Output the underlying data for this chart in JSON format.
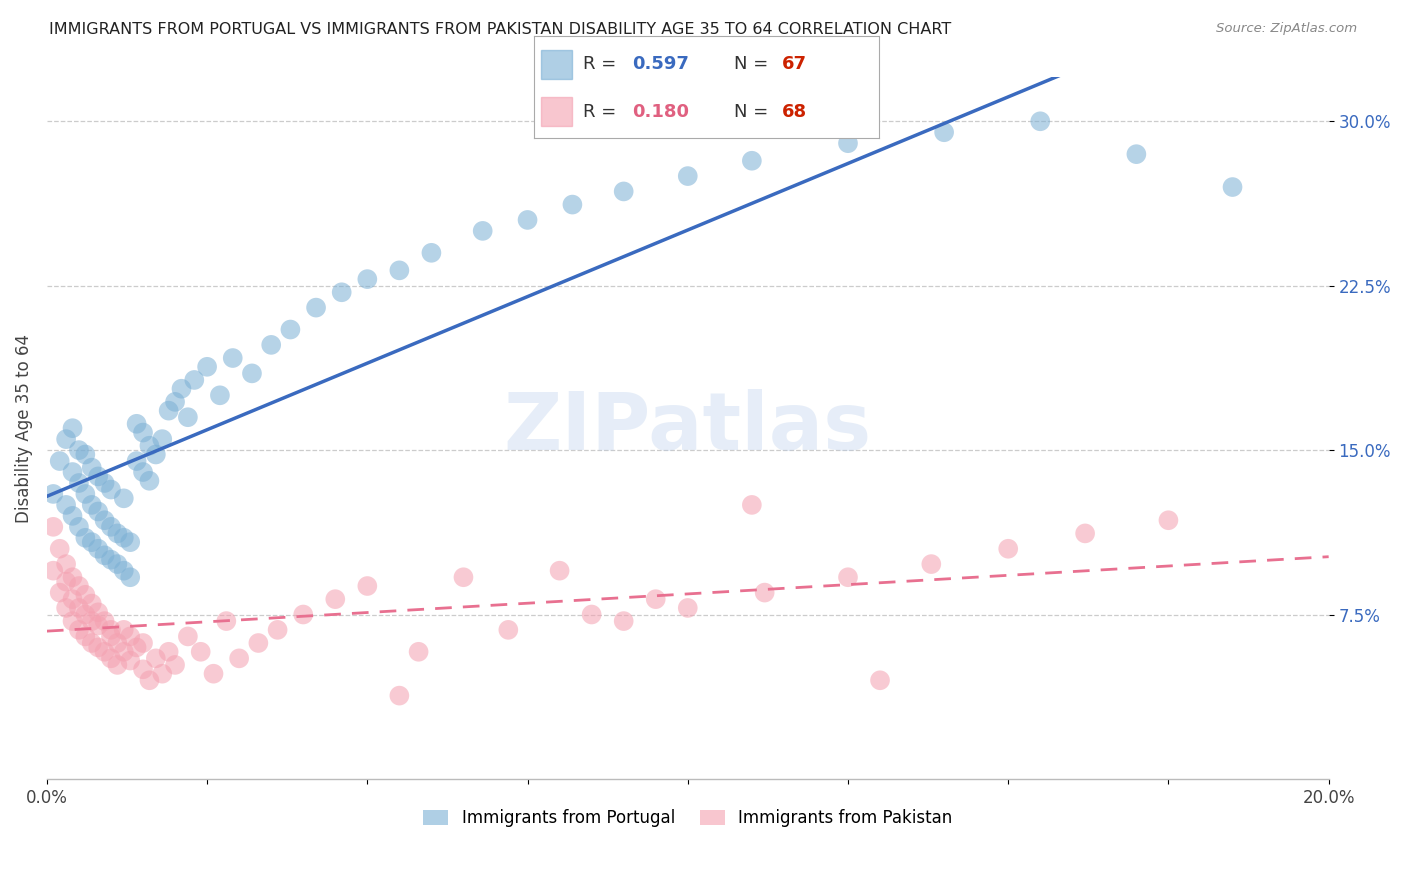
{
  "title": "IMMIGRANTS FROM PORTUGAL VS IMMIGRANTS FROM PAKISTAN DISABILITY AGE 35 TO 64 CORRELATION CHART",
  "source": "Source: ZipAtlas.com",
  "ylabel": "Disability Age 35 to 64",
  "xlim": [
    0.0,
    0.2
  ],
  "ylim": [
    0.0,
    0.32
  ],
  "xtick_positions": [
    0.0,
    0.025,
    0.05,
    0.075,
    0.1,
    0.125,
    0.15,
    0.175,
    0.2
  ],
  "xticklabels": [
    "0.0%",
    "",
    "",
    "",
    "",
    "",
    "",
    "",
    "20.0%"
  ],
  "ytick_positions": [
    0.075,
    0.15,
    0.225,
    0.3
  ],
  "ytick_labels": [
    "7.5%",
    "15.0%",
    "22.5%",
    "30.0%"
  ],
  "grid_color": "#cccccc",
  "background_color": "#ffffff",
  "portugal_color": "#7bafd4",
  "pakistan_color": "#f4a0b0",
  "portugal_line_color": "#3a6abf",
  "pakistan_line_color": "#e87090",
  "legend_R1_color": "#3a6abf",
  "legend_N1_color": "#cc2200",
  "legend_R2_color": "#e06080",
  "legend_N2_color": "#cc2200",
  "watermark": "ZIPatlas",
  "portugal_scatter_x": [
    0.001,
    0.002,
    0.003,
    0.003,
    0.004,
    0.004,
    0.004,
    0.005,
    0.005,
    0.005,
    0.006,
    0.006,
    0.006,
    0.007,
    0.007,
    0.007,
    0.008,
    0.008,
    0.008,
    0.009,
    0.009,
    0.009,
    0.01,
    0.01,
    0.01,
    0.011,
    0.011,
    0.012,
    0.012,
    0.012,
    0.013,
    0.013,
    0.014,
    0.014,
    0.015,
    0.015,
    0.016,
    0.016,
    0.017,
    0.018,
    0.019,
    0.02,
    0.021,
    0.022,
    0.023,
    0.025,
    0.027,
    0.029,
    0.032,
    0.035,
    0.038,
    0.042,
    0.046,
    0.05,
    0.055,
    0.06,
    0.068,
    0.075,
    0.082,
    0.09,
    0.1,
    0.11,
    0.125,
    0.14,
    0.155,
    0.17,
    0.185
  ],
  "portugal_scatter_y": [
    0.13,
    0.145,
    0.125,
    0.155,
    0.12,
    0.14,
    0.16,
    0.115,
    0.135,
    0.15,
    0.11,
    0.13,
    0.148,
    0.108,
    0.125,
    0.142,
    0.105,
    0.122,
    0.138,
    0.102,
    0.118,
    0.135,
    0.1,
    0.115,
    0.132,
    0.098,
    0.112,
    0.095,
    0.11,
    0.128,
    0.092,
    0.108,
    0.145,
    0.162,
    0.14,
    0.158,
    0.136,
    0.152,
    0.148,
    0.155,
    0.168,
    0.172,
    0.178,
    0.165,
    0.182,
    0.188,
    0.175,
    0.192,
    0.185,
    0.198,
    0.205,
    0.215,
    0.222,
    0.228,
    0.232,
    0.24,
    0.25,
    0.255,
    0.262,
    0.268,
    0.275,
    0.282,
    0.29,
    0.295,
    0.3,
    0.285,
    0.27
  ],
  "pakistan_scatter_x": [
    0.001,
    0.001,
    0.002,
    0.002,
    0.003,
    0.003,
    0.003,
    0.004,
    0.004,
    0.004,
    0.005,
    0.005,
    0.005,
    0.006,
    0.006,
    0.006,
    0.007,
    0.007,
    0.007,
    0.008,
    0.008,
    0.008,
    0.009,
    0.009,
    0.01,
    0.01,
    0.01,
    0.011,
    0.011,
    0.012,
    0.012,
    0.013,
    0.013,
    0.014,
    0.015,
    0.015,
    0.016,
    0.017,
    0.018,
    0.019,
    0.02,
    0.022,
    0.024,
    0.026,
    0.028,
    0.03,
    0.033,
    0.036,
    0.04,
    0.045,
    0.05,
    0.058,
    0.065,
    0.072,
    0.08,
    0.09,
    0.1,
    0.112,
    0.125,
    0.138,
    0.15,
    0.162,
    0.175,
    0.055,
    0.085,
    0.095,
    0.11,
    0.13
  ],
  "pakistan_scatter_y": [
    0.115,
    0.095,
    0.105,
    0.085,
    0.098,
    0.078,
    0.09,
    0.092,
    0.072,
    0.082,
    0.088,
    0.068,
    0.078,
    0.084,
    0.065,
    0.075,
    0.08,
    0.062,
    0.072,
    0.076,
    0.06,
    0.07,
    0.072,
    0.058,
    0.068,
    0.055,
    0.065,
    0.052,
    0.062,
    0.058,
    0.068,
    0.054,
    0.065,
    0.06,
    0.05,
    0.062,
    0.045,
    0.055,
    0.048,
    0.058,
    0.052,
    0.065,
    0.058,
    0.048,
    0.072,
    0.055,
    0.062,
    0.068,
    0.075,
    0.082,
    0.088,
    0.058,
    0.092,
    0.068,
    0.095,
    0.072,
    0.078,
    0.085,
    0.092,
    0.098,
    0.105,
    0.112,
    0.118,
    0.038,
    0.075,
    0.082,
    0.125,
    0.045
  ]
}
